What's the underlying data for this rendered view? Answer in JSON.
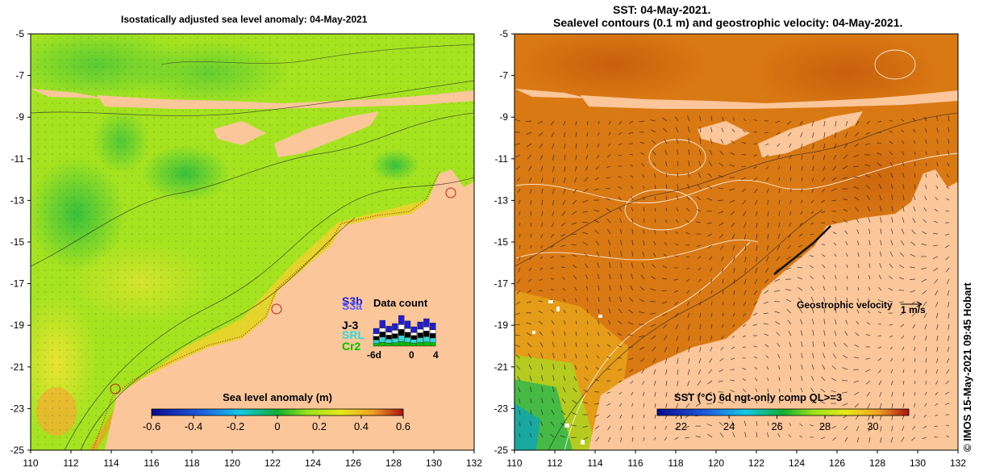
{
  "left_panel": {
    "title": "Isostatically adjusted sea level anomaly: 04-May-2021",
    "colorbar": {
      "title": "Sea level anomaly (m)",
      "ticks": [
        "-0.6",
        "-0.4",
        "-0.2",
        "0",
        "0.2",
        "0.4",
        "0.6"
      ],
      "range": [
        -0.6,
        0.6
      ]
    },
    "data_count": {
      "title": "Data count",
      "labels": [
        "S3b",
        "S3a",
        "J-3",
        "SRL",
        "Cr2"
      ],
      "label_colors": [
        "#1f1fd0",
        "#6060ff",
        "#000000",
        "#30d8d8",
        "#00c000"
      ],
      "x_ticks": [
        "-6d",
        "0",
        "4"
      ]
    }
  },
  "right_panel": {
    "title_line1": "SST: 04-May-2021.",
    "title_line2": "Sealevel contours (0.1 m) and geostrophic velocity: 04-May-2021.",
    "colorbar": {
      "title": "SST (°C) 6d ngt-only comp QL>=3",
      "ticks": [
        "22",
        "24",
        "26",
        "28",
        "30"
      ],
      "range": [
        21,
        31.5
      ]
    },
    "velocity_legend": {
      "label": "Geostrophic velocity",
      "scale": "1 m/s"
    }
  },
  "axes": {
    "lon_ticks": [
      "110",
      "112",
      "114",
      "116",
      "118",
      "120",
      "122",
      "124",
      "126",
      "128",
      "130",
      "132"
    ],
    "lat_ticks": [
      "-5",
      "-7",
      "-9",
      "-11",
      "-13",
      "-15",
      "-17",
      "-19",
      "-21",
      "-23",
      "-25"
    ],
    "lon_range": [
      110,
      132
    ],
    "lat_range": [
      -25,
      -5
    ]
  },
  "credit": "© IMOS 15-May-2021 09:45 Hobart",
  "colors": {
    "land": "#fbc79a",
    "ocean_sla": "#9ee21c",
    "ocean_sst": "#e07c14"
  }
}
